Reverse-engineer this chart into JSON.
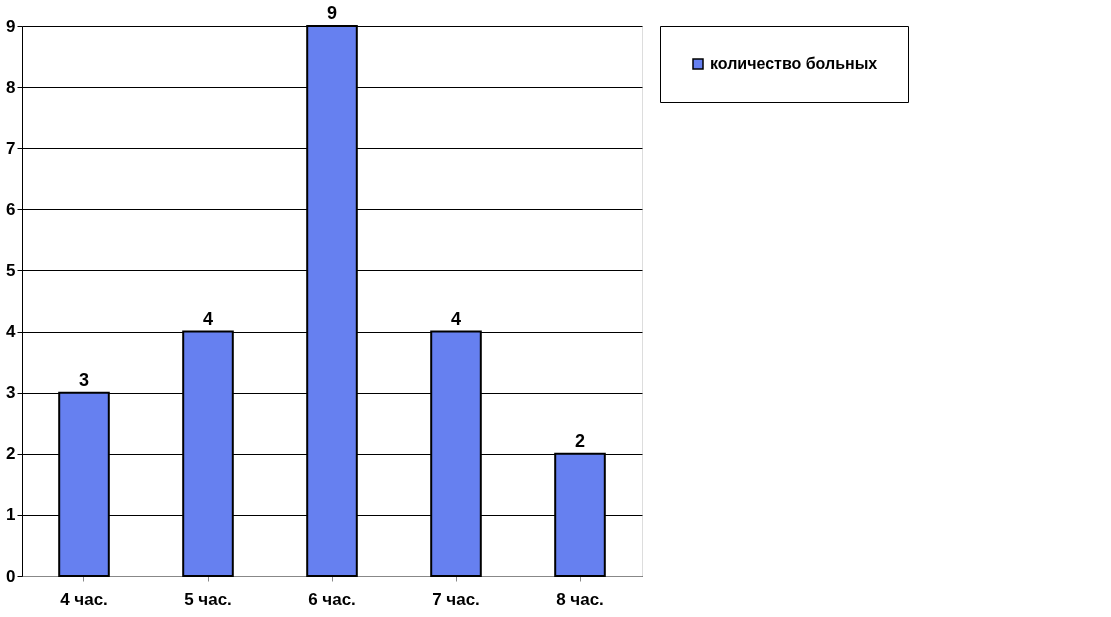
{
  "chart_data": {
    "type": "bar",
    "categories": [
      "4 час.",
      "5 час.",
      "6 час.",
      "7 час.",
      "8 час."
    ],
    "series": [
      {
        "name": "количество больных",
        "color": "#6680f0",
        "values": [
          3,
          4,
          9,
          4,
          2
        ]
      }
    ],
    "ylim": [
      0,
      9
    ],
    "yticks": [
      0,
      1,
      2,
      3,
      4,
      5,
      6,
      7,
      8,
      9
    ],
    "grid": "y",
    "legend": "right",
    "data_labels": true
  }
}
